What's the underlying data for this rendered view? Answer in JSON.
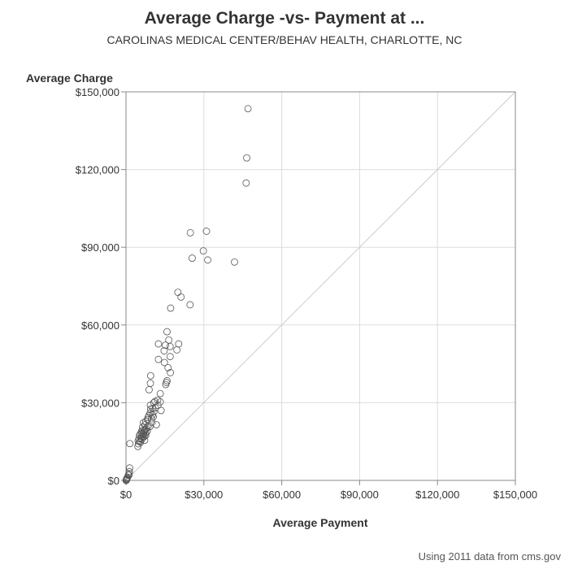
{
  "chart_data": {
    "type": "scatter",
    "title": "Average Charge -vs- Payment at ...",
    "subtitle": "CAROLINAS MEDICAL CENTER/BEHAV HEALTH, CHARLOTTE, NC",
    "xlabel": "Average Payment",
    "ylabel": "Average Charge",
    "xlim": [
      0,
      150000
    ],
    "ylim": [
      0,
      150000
    ],
    "xticks": [
      0,
      30000,
      60000,
      90000,
      120000,
      150000
    ],
    "yticks": [
      0,
      30000,
      60000,
      90000,
      120000,
      150000
    ],
    "xtick_labels": [
      "$0",
      "$30,000",
      "$60,000",
      "$90,000",
      "$120,000",
      "$150,000"
    ],
    "ytick_labels": [
      "$0",
      "$30,000",
      "$60,000",
      "$90,000",
      "$120,000",
      "$150,000"
    ],
    "grid": true,
    "reference_line": "y = x",
    "marker": "open-circle",
    "colors": {
      "marker": "#555555",
      "grid": "#dddddd",
      "reference_line": "#cccccc",
      "frame": "#888888"
    },
    "points": [
      [
        47000,
        143500
      ],
      [
        46500,
        124500
      ],
      [
        46300,
        114800
      ],
      [
        24800,
        95600
      ],
      [
        31000,
        96200
      ],
      [
        29800,
        88600
      ],
      [
        25500,
        85800
      ],
      [
        31500,
        85100
      ],
      [
        41800,
        84300
      ],
      [
        20000,
        72600
      ],
      [
        21200,
        70800
      ],
      [
        17200,
        66500
      ],
      [
        24700,
        67800
      ],
      [
        15800,
        57400
      ],
      [
        16500,
        54200
      ],
      [
        12500,
        52700
      ],
      [
        15200,
        52200
      ],
      [
        17000,
        51700
      ],
      [
        20300,
        52700
      ],
      [
        14700,
        50000
      ],
      [
        19600,
        50400
      ],
      [
        17000,
        47800
      ],
      [
        12500,
        46700
      ],
      [
        14800,
        45500
      ],
      [
        16200,
        43500
      ],
      [
        17100,
        41600
      ],
      [
        9500,
        40400
      ],
      [
        9400,
        37500
      ],
      [
        15800,
        38500
      ],
      [
        15600,
        37800
      ],
      [
        15300,
        37000
      ],
      [
        8900,
        35000
      ],
      [
        13200,
        33500
      ],
      [
        12200,
        31000
      ],
      [
        11200,
        30500
      ],
      [
        13200,
        30300
      ],
      [
        10700,
        30000
      ],
      [
        12300,
        29000
      ],
      [
        9400,
        29000
      ],
      [
        11300,
        28000
      ],
      [
        10300,
        27800
      ],
      [
        9500,
        27500
      ],
      [
        13500,
        27000
      ],
      [
        10700,
        26500
      ],
      [
        9300,
        26000
      ],
      [
        10200,
        25300
      ],
      [
        8800,
        25000
      ],
      [
        8500,
        24300
      ],
      [
        10500,
        24500
      ],
      [
        9800,
        23800
      ],
      [
        8300,
        23500
      ],
      [
        7600,
        22800
      ],
      [
        10000,
        22300
      ],
      [
        6700,
        22200
      ],
      [
        7300,
        21500
      ],
      [
        11700,
        21500
      ],
      [
        8500,
        21000
      ],
      [
        9200,
        20800
      ],
      [
        6400,
        20500
      ],
      [
        7900,
        20000
      ],
      [
        7400,
        19600
      ],
      [
        6300,
        19300
      ],
      [
        7000,
        19000
      ],
      [
        8200,
        19000
      ],
      [
        5900,
        18700
      ],
      [
        6900,
        18500
      ],
      [
        7600,
        18300
      ],
      [
        6200,
        18000
      ],
      [
        5500,
        17900
      ],
      [
        6800,
        17600
      ],
      [
        7600,
        17500
      ],
      [
        5200,
        17300
      ],
      [
        6000,
        17000
      ],
      [
        7000,
        16900
      ],
      [
        6500,
        16700
      ],
      [
        5800,
        16400
      ],
      [
        5000,
        16100
      ],
      [
        6100,
        15900
      ],
      [
        7200,
        15500
      ],
      [
        5300,
        15000
      ],
      [
        4700,
        15300
      ],
      [
        5600,
        14700
      ],
      [
        1500,
        14200
      ],
      [
        4800,
        14100
      ],
      [
        4600,
        13100
      ],
      [
        1400,
        4800
      ],
      [
        1300,
        3400
      ],
      [
        1200,
        2600
      ],
      [
        900,
        2000
      ],
      [
        1100,
        2000
      ],
      [
        600,
        1200
      ],
      [
        400,
        900
      ],
      [
        300,
        600
      ],
      [
        250,
        300
      ],
      [
        200,
        150
      ],
      [
        150,
        100
      ],
      [
        100,
        50
      ],
      [
        50,
        0
      ]
    ]
  },
  "footnote": "Using 2011 data from cms.gov"
}
